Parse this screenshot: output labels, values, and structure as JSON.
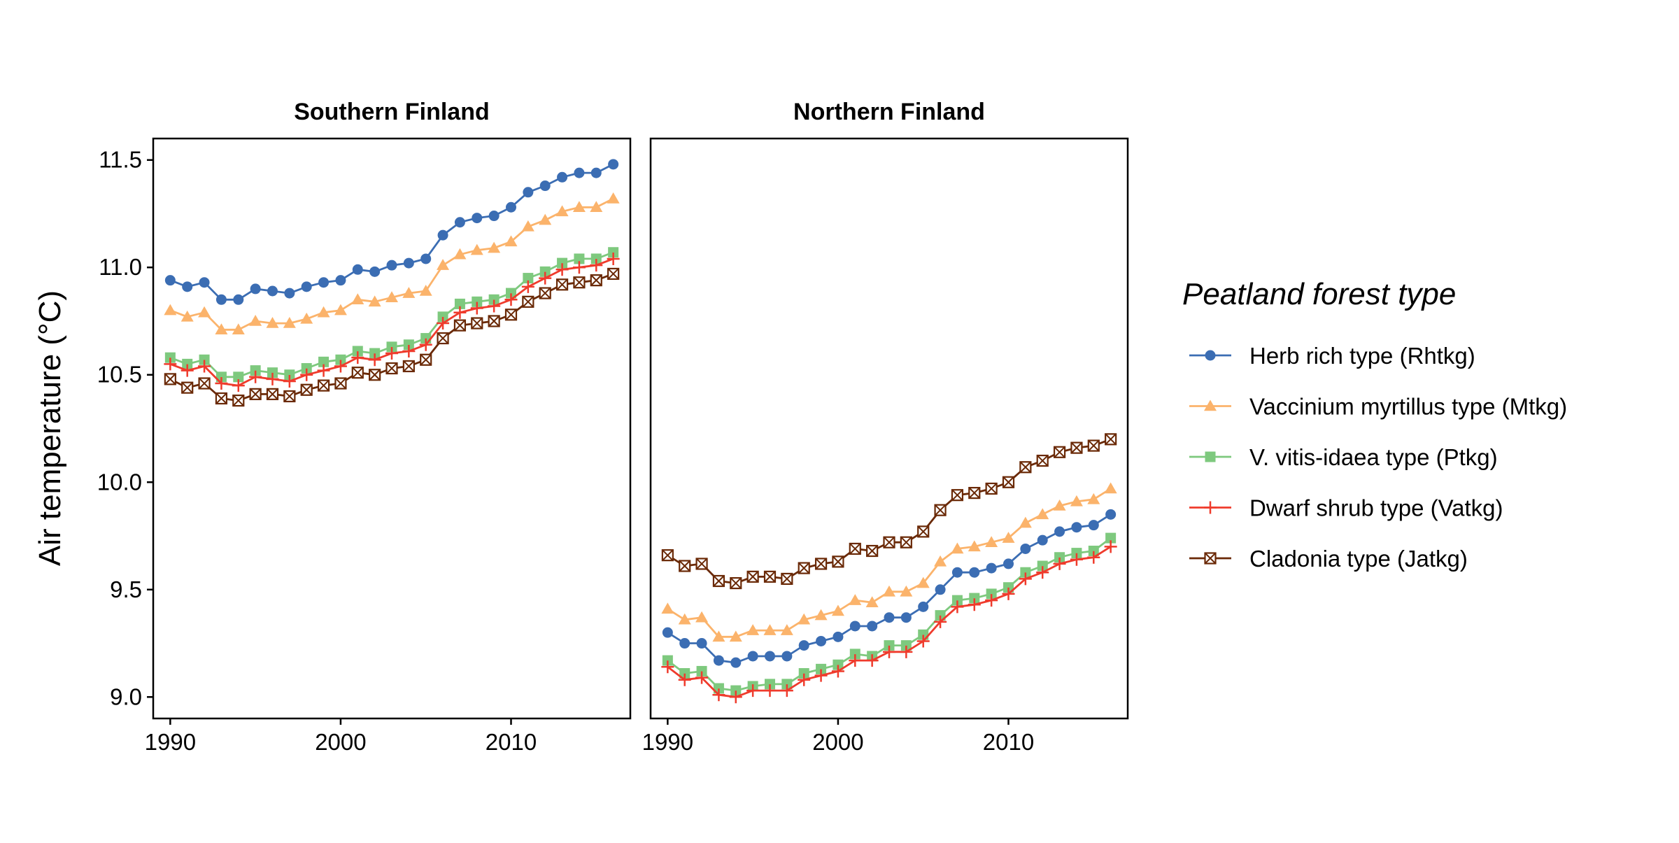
{
  "chart_data": {
    "type": "line",
    "ylabel": "Air temperature (°C)",
    "xlabel": "",
    "ylim": [
      8.9,
      11.6
    ],
    "xlim": [
      1989,
      2017
    ],
    "yticks": [
      "9.0",
      "9.5",
      "10.0",
      "10.5",
      "11.0",
      "11.5"
    ],
    "xticks": [
      "1990",
      "2000",
      "2010"
    ],
    "grid": false,
    "legend": {
      "title": "Peatland forest type",
      "position": "right"
    },
    "series_meta": [
      {
        "name": "Herb rich type (Rhtkg)",
        "color": "#3b6db3",
        "marker": "circle"
      },
      {
        "name": "Vaccinium myrtillus type (Mtkg)",
        "color": "#fbb36b",
        "marker": "triangle"
      },
      {
        "name": "V. vitis-idaea type (Ptkg)",
        "color": "#7ec97e",
        "marker": "square"
      },
      {
        "name": "Dwarf shrub type (Vatkg)",
        "color": "#ef3b2c",
        "marker": "plus"
      },
      {
        "name": "Cladonia type (Jatkg)",
        "color": "#6a2906",
        "marker": "boxcross"
      }
    ],
    "panels": [
      {
        "title": "Southern Finland",
        "x": [
          1990,
          1991,
          1992,
          1993,
          1994,
          1995,
          1996,
          1997,
          1998,
          1999,
          2000,
          2001,
          2002,
          2003,
          2004,
          2005,
          2006,
          2007,
          2008,
          2009,
          2010,
          2011,
          2012,
          2013,
          2014,
          2015,
          2016
        ],
        "series": [
          {
            "values": [
              10.94,
              10.91,
              10.93,
              10.85,
              10.85,
              10.9,
              10.89,
              10.88,
              10.91,
              10.93,
              10.94,
              10.99,
              10.98,
              11.01,
              11.02,
              11.04,
              11.15,
              11.21,
              11.23,
              11.24,
              11.28,
              11.35,
              11.38,
              11.42,
              11.44,
              11.44,
              11.48
            ]
          },
          {
            "values": [
              10.8,
              10.77,
              10.79,
              10.71,
              10.71,
              10.75,
              10.74,
              10.74,
              10.76,
              10.79,
              10.8,
              10.85,
              10.84,
              10.86,
              10.88,
              10.89,
              11.01,
              11.06,
              11.08,
              11.09,
              11.12,
              11.19,
              11.22,
              11.26,
              11.28,
              11.28,
              11.32
            ]
          },
          {
            "values": [
              10.58,
              10.55,
              10.57,
              10.49,
              10.49,
              10.52,
              10.51,
              10.5,
              10.53,
              10.56,
              10.57,
              10.61,
              10.6,
              10.63,
              10.64,
              10.67,
              10.77,
              10.83,
              10.84,
              10.85,
              10.88,
              10.95,
              10.98,
              11.02,
              11.04,
              11.04,
              11.07
            ]
          },
          {
            "values": [
              10.55,
              10.52,
              10.54,
              10.46,
              10.45,
              10.49,
              10.48,
              10.47,
              10.5,
              10.52,
              10.54,
              10.58,
              10.57,
              10.6,
              10.61,
              10.64,
              10.74,
              10.79,
              10.81,
              10.82,
              10.85,
              10.91,
              10.95,
              10.99,
              11.0,
              11.01,
              11.04
            ]
          },
          {
            "values": [
              10.48,
              10.44,
              10.46,
              10.39,
              10.38,
              10.41,
              10.41,
              10.4,
              10.43,
              10.45,
              10.46,
              10.51,
              10.5,
              10.53,
              10.54,
              10.57,
              10.67,
              10.73,
              10.74,
              10.75,
              10.78,
              10.84,
              10.88,
              10.92,
              10.93,
              10.94,
              10.97
            ]
          }
        ]
      },
      {
        "title": "Northern Finland",
        "x": [
          1990,
          1991,
          1992,
          1993,
          1994,
          1995,
          1996,
          1997,
          1998,
          1999,
          2000,
          2001,
          2002,
          2003,
          2004,
          2005,
          2006,
          2007,
          2008,
          2009,
          2010,
          2011,
          2012,
          2013,
          2014,
          2015,
          2016
        ],
        "series": [
          {
            "values": [
              9.3,
              9.25,
              9.25,
              9.17,
              9.16,
              9.19,
              9.19,
              9.19,
              9.24,
              9.26,
              9.28,
              9.33,
              9.33,
              9.37,
              9.37,
              9.42,
              9.5,
              9.58,
              9.58,
              9.6,
              9.62,
              9.69,
              9.73,
              9.77,
              9.79,
              9.8,
              9.85
            ]
          },
          {
            "values": [
              9.41,
              9.36,
              9.37,
              9.28,
              9.28,
              9.31,
              9.31,
              9.31,
              9.36,
              9.38,
              9.4,
              9.45,
              9.44,
              9.49,
              9.49,
              9.53,
              9.63,
              9.69,
              9.7,
              9.72,
              9.74,
              9.81,
              9.85,
              9.89,
              9.91,
              9.92,
              9.97
            ]
          },
          {
            "values": [
              9.17,
              9.11,
              9.12,
              9.04,
              9.03,
              9.05,
              9.06,
              9.06,
              9.11,
              9.13,
              9.15,
              9.2,
              9.19,
              9.24,
              9.24,
              9.29,
              9.38,
              9.45,
              9.46,
              9.48,
              9.51,
              9.58,
              9.61,
              9.65,
              9.67,
              9.68,
              9.74
            ]
          },
          {
            "values": [
              9.14,
              9.08,
              9.09,
              9.01,
              9.0,
              9.03,
              9.03,
              9.03,
              9.08,
              9.1,
              9.12,
              9.17,
              9.17,
              9.21,
              9.21,
              9.26,
              9.35,
              9.42,
              9.43,
              9.45,
              9.48,
              9.55,
              9.58,
              9.62,
              9.64,
              9.65,
              9.7
            ]
          },
          {
            "values": [
              9.66,
              9.61,
              9.62,
              9.54,
              9.53,
              9.56,
              9.56,
              9.55,
              9.6,
              9.62,
              9.63,
              9.69,
              9.68,
              9.72,
              9.72,
              9.77,
              9.87,
              9.94,
              9.95,
              9.97,
              10.0,
              10.07,
              10.1,
              10.14,
              10.16,
              10.17,
              10.2
            ]
          }
        ]
      }
    ]
  }
}
